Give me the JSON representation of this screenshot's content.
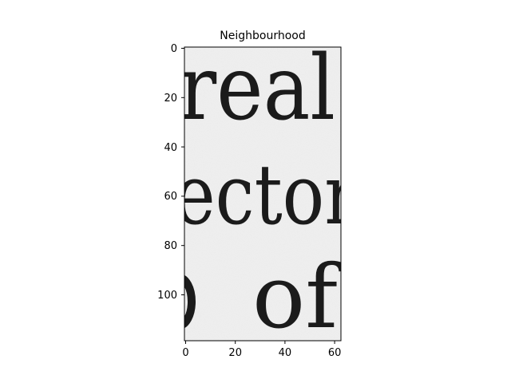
{
  "figure": {
    "title": "Neighbourhood",
    "background_color": "#ffffff",
    "image_background_color": "#efefef",
    "ink_color": "#1b1b1b"
  },
  "image": {
    "description_lines": [
      "real",
      "ector",
      "of"
    ],
    "x_axis": {
      "ticks": [
        0,
        20,
        40,
        60
      ],
      "tick_labels": [
        "0",
        "20",
        "40",
        "60"
      ],
      "range": [
        -0.5,
        62.5
      ]
    },
    "y_axis": {
      "ticks": [
        0,
        20,
        40,
        60,
        80,
        100
      ],
      "tick_labels": [
        "0",
        "20",
        "40",
        "60",
        "80",
        "100"
      ],
      "range": [
        118.5,
        -0.5
      ],
      "inverted": true
    }
  }
}
